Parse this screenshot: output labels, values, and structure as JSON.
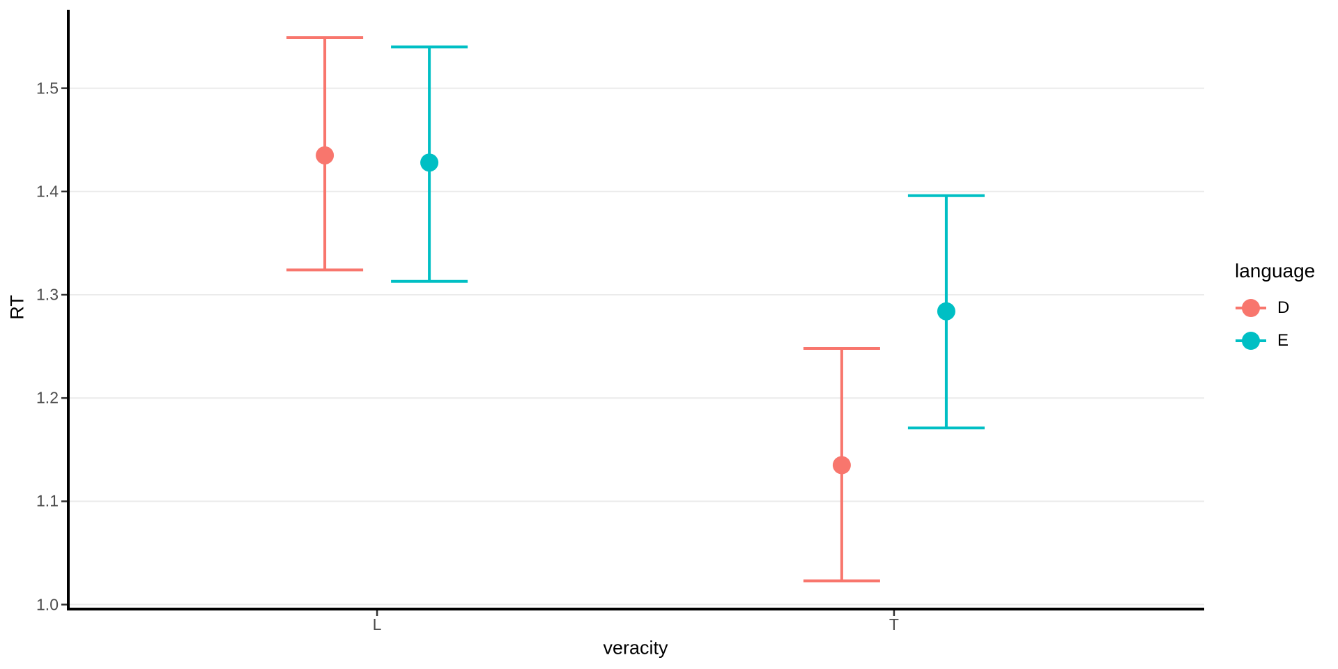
{
  "chart_data": {
    "type": "pointrange",
    "title": "",
    "xlabel": "veracity",
    "ylabel": "RT",
    "categories": [
      "L",
      "T"
    ],
    "series": [
      {
        "name": "D",
        "color": "#F8766D",
        "points": [
          {
            "x": "L",
            "mean": 1.435,
            "lower": 1.324,
            "upper": 1.549
          },
          {
            "x": "T",
            "mean": 1.135,
            "lower": 1.023,
            "upper": 1.248
          }
        ]
      },
      {
        "name": "E",
        "color": "#00BFC4",
        "points": [
          {
            "x": "L",
            "mean": 1.428,
            "lower": 1.313,
            "upper": 1.54
          },
          {
            "x": "T",
            "mean": 1.284,
            "lower": 1.171,
            "upper": 1.396
          }
        ]
      }
    ],
    "yticks": [
      1.0,
      1.1,
      1.2,
      1.3,
      1.4,
      1.5
    ],
    "ytick_labels": [
      "1.0",
      "1.1",
      "1.2",
      "1.3",
      "1.4",
      "1.5"
    ],
    "ylim": [
      0.997,
      1.576
    ],
    "grid": "major-y-only",
    "legend": {
      "title": "language",
      "position": "right",
      "entries": [
        "D",
        "E"
      ]
    },
    "colors": {
      "grid": "#EBEBEB",
      "axis_line": "#000000",
      "tick_mark": "#333333",
      "tick_text": "#4D4D4D",
      "background": "#FFFFFF"
    }
  }
}
